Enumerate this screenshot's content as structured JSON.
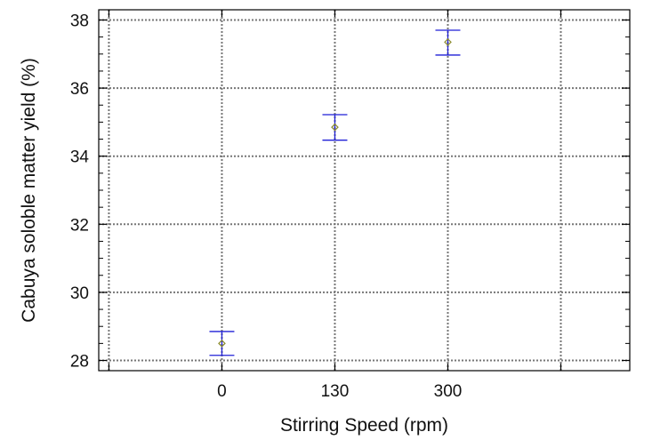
{
  "chart_data": {
    "type": "scatter",
    "title": "",
    "xlabel": "Stirring Speed (rpm)",
    "ylabel": "Cabuya soloble matter yield (%)",
    "categories": [
      "0",
      "130",
      "300"
    ],
    "ylim": [
      27.7,
      38.3
    ],
    "yticks": [
      28,
      30,
      32,
      34,
      36,
      38
    ],
    "grid": true,
    "legend": "none",
    "series": [
      {
        "values": [
          28.5,
          34.85,
          37.35
        ],
        "error_low": [
          28.15,
          34.47,
          36.97
        ],
        "error_high": [
          28.85,
          35.22,
          37.7
        ],
        "marker": "diamond",
        "marker_color": "#8a8a2a",
        "error_color": "#1f1fd6"
      }
    ]
  }
}
